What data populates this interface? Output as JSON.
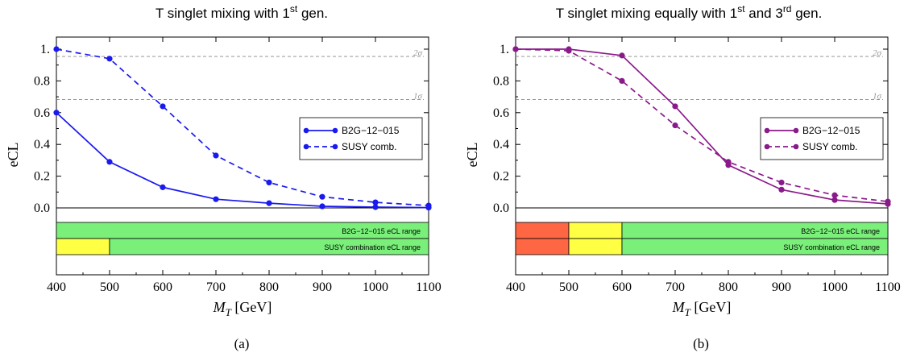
{
  "chart_data": [
    {
      "type": "line",
      "title": "T singlet mixing with 1",
      "title_sup": "st",
      "title_after": " gen.",
      "caption": "(a)",
      "xlabel_var": "M",
      "xlabel_sub": "T",
      "xlabel_unit": " [GeV]",
      "ylabel": "eCL",
      "xlim": [
        400,
        1100
      ],
      "ylim": [
        0,
        1.07
      ],
      "x_ticks": [
        400,
        500,
        600,
        700,
        800,
        900,
        1000,
        1100
      ],
      "y_ticks": [
        0.0,
        0.2,
        0.4,
        0.6,
        0.8,
        1.0
      ],
      "y_tick_labels": [
        "0.0",
        "0.2",
        "0.4",
        "0.6",
        "0.8",
        "1."
      ],
      "color": "#1a1aee",
      "sigma_lines": [
        {
          "label": "2σ",
          "y": 0.954
        },
        {
          "label": "1σ",
          "y": 0.683
        }
      ],
      "legend_position": "right",
      "x": [
        400,
        500,
        600,
        700,
        800,
        900,
        1000,
        1100
      ],
      "series": [
        {
          "name": "B2G−12−015",
          "style": "solid",
          "values": [
            0.6,
            0.29,
            0.13,
            0.055,
            0.03,
            0.01,
            0.005,
            0.002
          ]
        },
        {
          "name": "SUSY comb.",
          "style": "dashed",
          "values": [
            1.0,
            0.94,
            0.64,
            0.33,
            0.16,
            0.07,
            0.035,
            0.015
          ]
        }
      ],
      "bands": [
        {
          "label": "B2G−12−015 eCL range",
          "segments": [
            {
              "from": 400,
              "to": 1100,
              "color": "#7af07a"
            }
          ]
        },
        {
          "label": "SUSY combination eCL range",
          "segments": [
            {
              "from": 400,
              "to": 500,
              "color": "#ffff44"
            },
            {
              "from": 500,
              "to": 1100,
              "color": "#7af07a"
            }
          ]
        }
      ]
    },
    {
      "type": "line",
      "title": "T singlet mixing equally with 1",
      "title_sup": "st",
      "title_mid": " and 3",
      "title_sup2": "rd",
      "title_after": " gen.",
      "caption": "(b)",
      "xlabel_var": "M",
      "xlabel_sub": "T",
      "xlabel_unit": " [GeV]",
      "ylabel": "eCL",
      "xlim": [
        400,
        1100
      ],
      "ylim": [
        0,
        1.07
      ],
      "x_ticks": [
        400,
        500,
        600,
        700,
        800,
        900,
        1000,
        1100
      ],
      "y_ticks": [
        0.0,
        0.2,
        0.4,
        0.6,
        0.8,
        1.0
      ],
      "y_tick_labels": [
        "0.0",
        "0.2",
        "0.4",
        "0.6",
        "0.8",
        "1."
      ],
      "color": "#8a1a8a",
      "sigma_lines": [
        {
          "label": "2σ",
          "y": 0.954
        },
        {
          "label": "1σ",
          "y": 0.683
        }
      ],
      "legend_position": "right",
      "x": [
        400,
        500,
        600,
        700,
        800,
        900,
        1000,
        1100
      ],
      "series": [
        {
          "name": "B2G−12−015",
          "style": "solid",
          "values": [
            1.0,
            1.0,
            0.96,
            0.64,
            0.27,
            0.115,
            0.05,
            0.025
          ]
        },
        {
          "name": "SUSY comb.",
          "style": "dashed",
          "values": [
            1.0,
            0.99,
            0.8,
            0.52,
            0.29,
            0.16,
            0.08,
            0.04
          ]
        }
      ],
      "bands": [
        {
          "label": "B2G−12−015 eCL range",
          "segments": [
            {
              "from": 400,
              "to": 500,
              "color": "#ff6644"
            },
            {
              "from": 500,
              "to": 600,
              "color": "#ffff44"
            },
            {
              "from": 600,
              "to": 1100,
              "color": "#7af07a"
            }
          ]
        },
        {
          "label": "SUSY combination eCL range",
          "segments": [
            {
              "from": 400,
              "to": 500,
              "color": "#ff6644"
            },
            {
              "from": 500,
              "to": 600,
              "color": "#ffff44"
            },
            {
              "from": 600,
              "to": 1100,
              "color": "#7af07a"
            }
          ]
        }
      ]
    }
  ]
}
